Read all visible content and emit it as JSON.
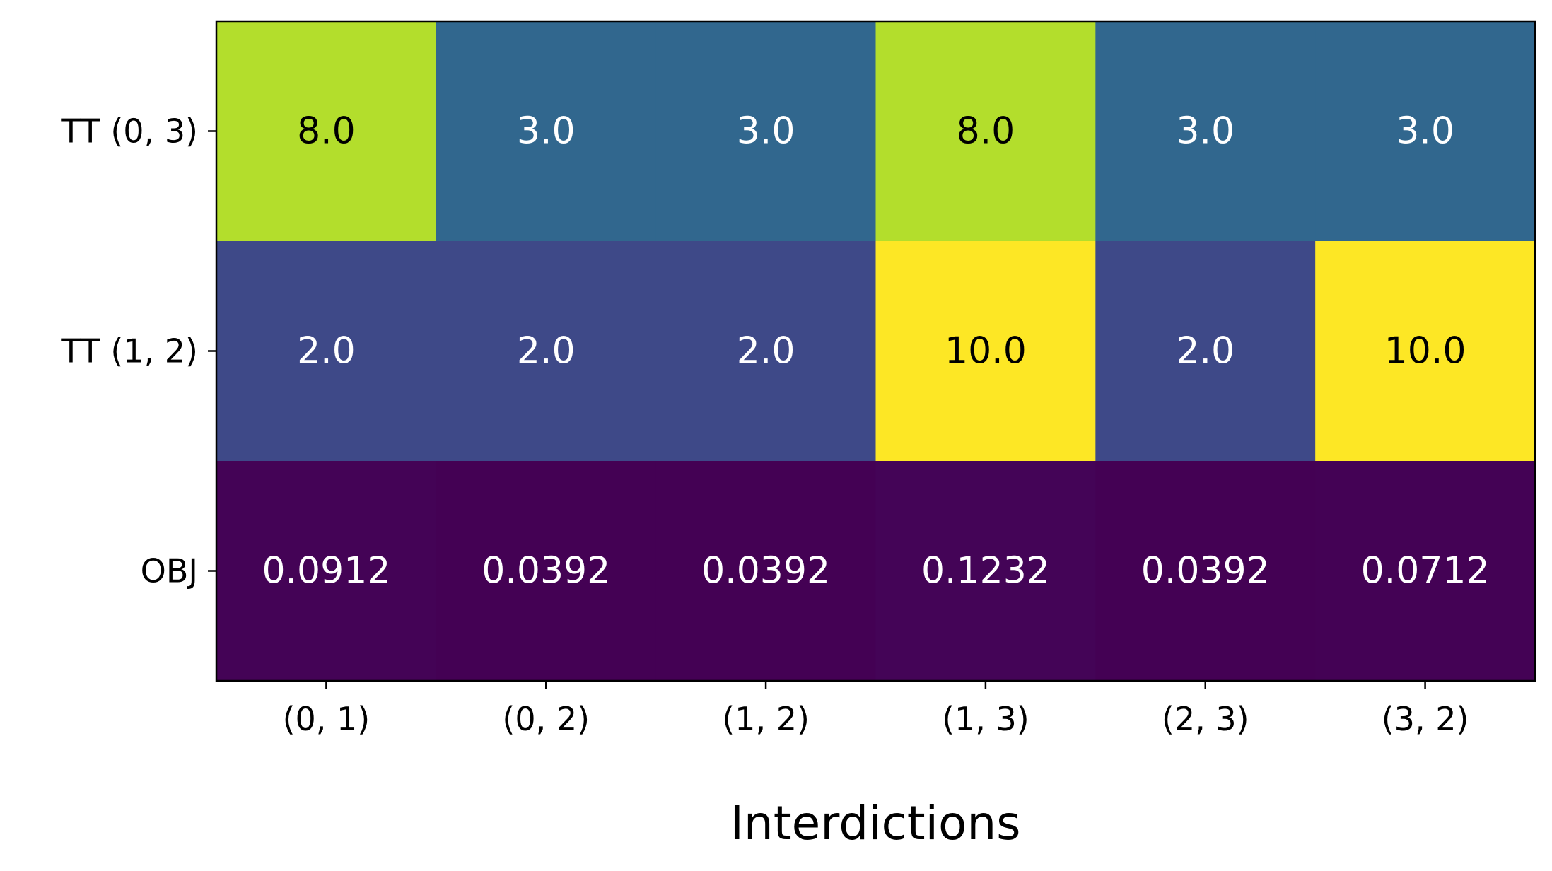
{
  "chart_data": {
    "type": "heatmap",
    "title": "",
    "xlabel": "Interdictions",
    "ylabel": "",
    "x_categories": [
      "(0, 1)",
      "(0, 2)",
      "(1, 2)",
      "(1, 3)",
      "(2, 3)",
      "(3, 2)"
    ],
    "y_categories": [
      "TT (0, 3)",
      "TT (1, 2)",
      "OBJ"
    ],
    "values": [
      [
        8.0,
        3.0,
        3.0,
        8.0,
        3.0,
        3.0
      ],
      [
        2.0,
        2.0,
        2.0,
        10.0,
        2.0,
        10.0
      ],
      [
        0.0912,
        0.0392,
        0.0392,
        0.1232,
        0.0392,
        0.0712
      ]
    ],
    "cell_labels": [
      [
        "8.0",
        "3.0",
        "3.0",
        "8.0",
        "3.0",
        "3.0"
      ],
      [
        "2.0",
        "2.0",
        "2.0",
        "10.0",
        "2.0",
        "10.0"
      ],
      [
        "0.0912",
        "0.0392",
        "0.0392",
        "0.1232",
        "0.0392",
        "0.0712"
      ]
    ],
    "colormap": "viridis",
    "vmin": 0.0392,
    "vmax": 10.0,
    "colorbar": false,
    "grid": false
  }
}
